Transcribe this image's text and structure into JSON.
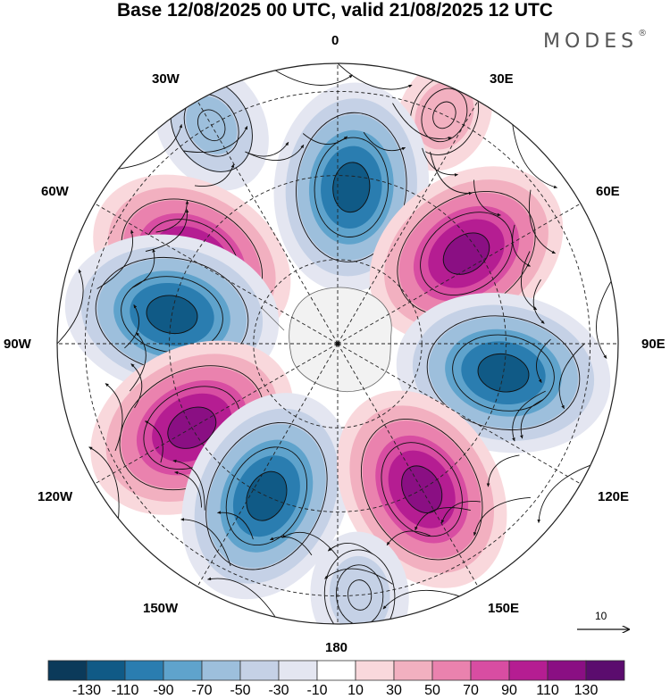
{
  "header": {
    "title": "Base 12/08/2025 00 UTC, valid 21/08/2025 12 UTC",
    "brand": "MODES",
    "brand_mark": "®"
  },
  "map": {
    "projection": "south-polar-stereographic",
    "longitude_labels": {
      "lon_0": "0",
      "lon_30e": "30E",
      "lon_60e": "60E",
      "lon_90e": "90E",
      "lon_120e": "120E",
      "lon_150e": "150E",
      "lon_180": "180",
      "lon_150w": "150W",
      "lon_120w": "120W",
      "lon_90w": "90W",
      "lon_60w": "60W",
      "lon_30w": "30W"
    },
    "anomaly_centers": [
      {
        "lon_deg": 330,
        "lat_deg": -45,
        "value": -60
      },
      {
        "lon_deg": 25,
        "lat_deg": -45,
        "value": 40
      },
      {
        "lon_deg": 300,
        "lat_deg": -60,
        "value": 125
      },
      {
        "lon_deg": 5,
        "lat_deg": -62,
        "value": -125
      },
      {
        "lon_deg": 55,
        "lat_deg": -62,
        "value": 125
      },
      {
        "lon_deg": 280,
        "lat_deg": -60,
        "value": -130
      },
      {
        "lon_deg": 100,
        "lat_deg": -60,
        "value": -130
      },
      {
        "lon_deg": 240,
        "lat_deg": -60,
        "value": 130
      },
      {
        "lon_deg": 205,
        "lat_deg": -60,
        "value": -130
      },
      {
        "lon_deg": 150,
        "lat_deg": -60,
        "value": 125
      },
      {
        "lon_deg": 175,
        "lat_deg": -45,
        "value": -50
      }
    ],
    "reference_vector": {
      "value": "10"
    }
  },
  "colorbar": {
    "colors": [
      "#0b3a5a",
      "#105a86",
      "#2a7db0",
      "#5fa3cc",
      "#9dbfdc",
      "#c5d1e6",
      "#e4e6f1",
      "#ffffff",
      "#f9d8dc",
      "#f2b0c0",
      "#ea82ae",
      "#d84da2",
      "#b51d92",
      "#8a0f83",
      "#5b0c6e"
    ],
    "tick_labels": [
      "-130",
      "-110",
      "-90",
      "-70",
      "-50",
      "-30",
      "-10",
      "10",
      "30",
      "50",
      "70",
      "90",
      "110",
      "130"
    ]
  }
}
